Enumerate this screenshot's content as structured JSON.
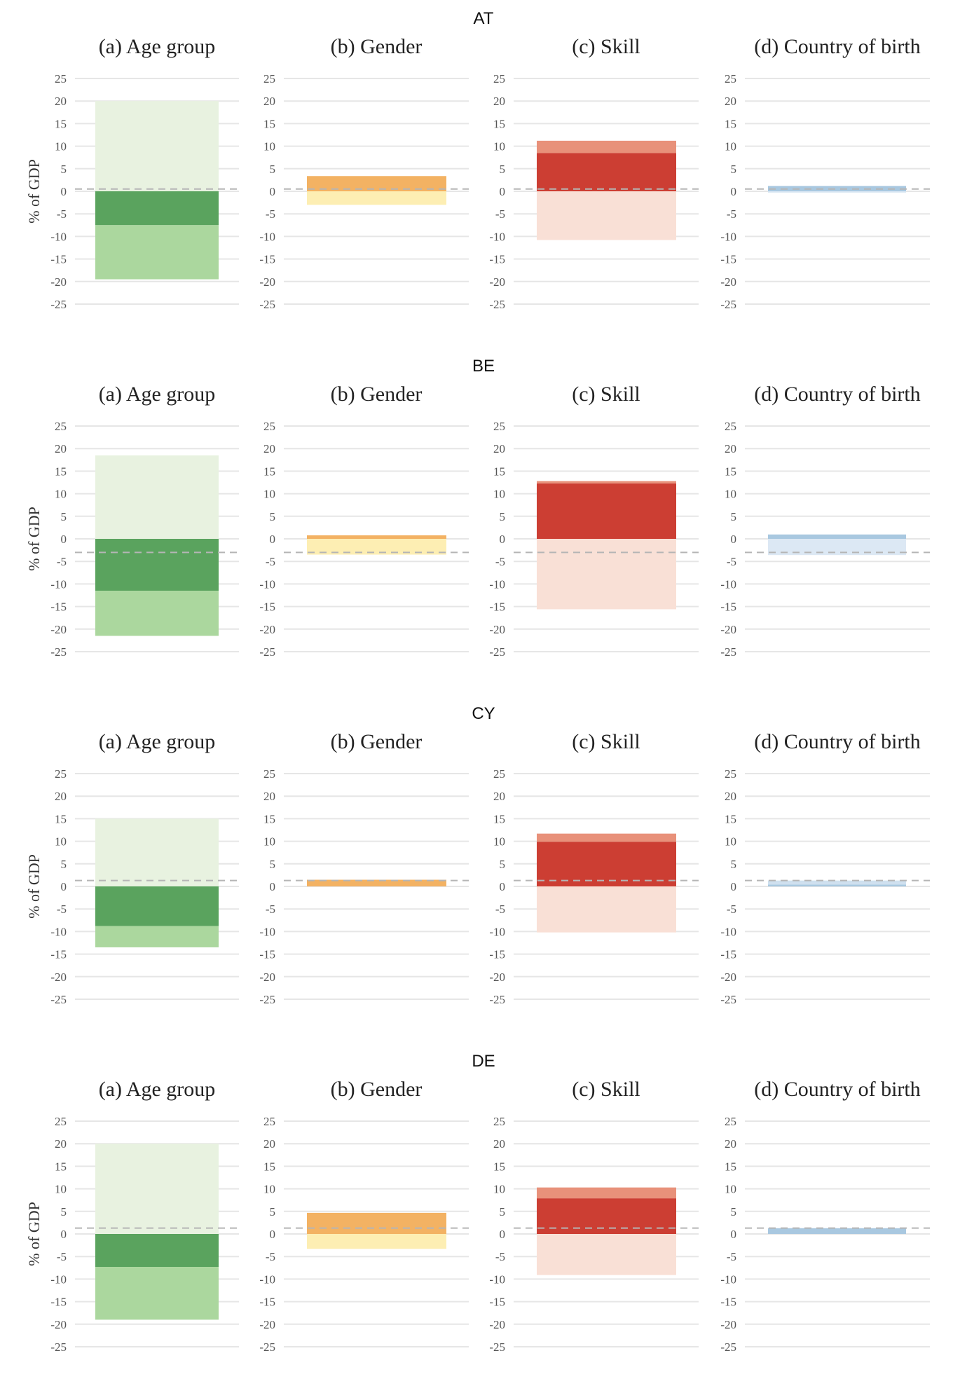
{
  "chart_data": {
    "type": "bar",
    "layout": "stacked range bars, 4 countries x 4 panels",
    "ylabel": "% of GDP",
    "ylim": [
      -25,
      25
    ],
    "yticks": [
      25,
      20,
      15,
      10,
      5,
      0,
      -5,
      -10,
      -15,
      -20,
      -25
    ],
    "grid": true,
    "legend": "none",
    "panel_titles": [
      "(a) Age group",
      "(b) Gender",
      "(c) Skill",
      "(d) Country of birth"
    ],
    "panel_colors": {
      "age": {
        "pos_light": "#e8f2e0",
        "pos_dark": "#a9d69a",
        "neg_dark": "#5aa35e",
        "neg_light": "#abd79e"
      },
      "gender": {
        "pos_dark": "#f3b263",
        "pos_light": "#fbd59c",
        "neg_dark": "#f8d98f",
        "neg_light": "#fdeeb3"
      },
      "skill": {
        "pos_dark": "#cc3e33",
        "pos_light": "#e8917a",
        "neg_dark": "#f2b3a0",
        "neg_light": "#f9e0d6"
      },
      "birth": {
        "pos_dark": "#a9c8e0",
        "pos_light": "#cfe0ef",
        "neg_dark": "#bdd4e8",
        "neg_light": "#dce8f4"
      }
    },
    "countries": [
      {
        "name": "AT",
        "reference": 0.5,
        "panels": [
          {
            "pos_inner": 0,
            "pos_outer": 20,
            "neg_inner": -7.5,
            "neg_outer": -19.5
          },
          {
            "pos_inner": 3.3,
            "pos_outer": 3.3,
            "neg_inner": 0,
            "neg_outer": -3
          },
          {
            "pos_inner": 8.5,
            "pos_outer": 11.2,
            "neg_inner": 0,
            "neg_outer": -10.8
          },
          {
            "pos_inner": 1.1,
            "pos_outer": 1.1,
            "neg_inner": 0,
            "neg_outer": -0.3
          }
        ]
      },
      {
        "name": "BE",
        "reference": -3,
        "panels": [
          {
            "pos_inner": 0,
            "pos_outer": 18.5,
            "neg_inner": -11.5,
            "neg_outer": -21.5
          },
          {
            "pos_inner": 0.7,
            "pos_outer": 0.7,
            "neg_inner": 0,
            "neg_outer": -3.5
          },
          {
            "pos_inner": 12.3,
            "pos_outer": 12.8,
            "neg_inner": 0,
            "neg_outer": -15.6
          },
          {
            "pos_inner": 0.9,
            "pos_outer": 0.9,
            "neg_inner": 0,
            "neg_outer": -3.6
          }
        ]
      },
      {
        "name": "CY",
        "reference": 1.3,
        "panels": [
          {
            "pos_inner": 0,
            "pos_outer": 15,
            "neg_inner": -8.8,
            "neg_outer": -13.5
          },
          {
            "pos_inner": 1.4,
            "pos_outer": 1.4,
            "neg_inner": 0,
            "neg_outer": 0
          },
          {
            "pos_inner": 9.9,
            "pos_outer": 11.7,
            "neg_inner": 0,
            "neg_outer": -10.2
          },
          {
            "pos_inner": 0.4,
            "pos_outer": 1.3,
            "neg_inner": 0,
            "neg_outer": 0
          }
        ]
      },
      {
        "name": "DE",
        "reference": 1.3,
        "panels": [
          {
            "pos_inner": 0,
            "pos_outer": 20,
            "neg_inner": -7.3,
            "neg_outer": -19
          },
          {
            "pos_inner": 4.6,
            "pos_outer": 4.6,
            "neg_inner": 0,
            "neg_outer": -3.3
          },
          {
            "pos_inner": 7.9,
            "pos_outer": 10.3,
            "neg_inner": 0,
            "neg_outer": -9.1
          },
          {
            "pos_inner": 1.2,
            "pos_outer": 1.2,
            "neg_inner": 0,
            "neg_outer": 0
          }
        ]
      }
    ]
  }
}
